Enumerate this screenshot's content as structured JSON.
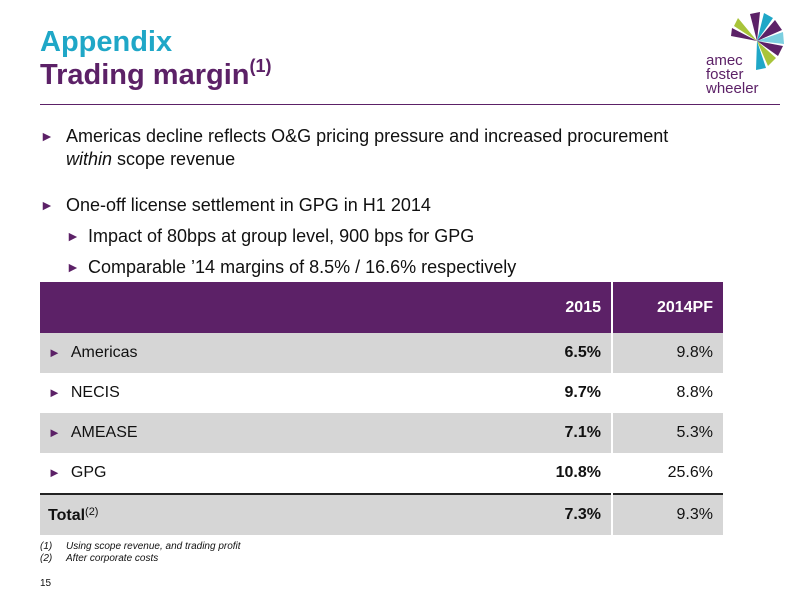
{
  "header": {
    "title_line1": "Appendix",
    "title_line2": "Trading margin",
    "title_sup": "(1)"
  },
  "logo": {
    "words": [
      "amec",
      "foster",
      "wheeler"
    ],
    "colors": [
      "#5c2167",
      "#1fa7c7",
      "#a8c43a",
      "#7ccfe0"
    ]
  },
  "bullets": {
    "b1_text": "Americas decline reflects O&G pricing pressure and increased procurement",
    "b1_cont_italic": "within",
    "b1_cont_rest": " scope revenue",
    "b2_text": "One-off license settlement in GPG in H1 2014",
    "b2_sub1": "Impact of 80bps at group level, 900 bps for GPG",
    "b2_sub2": "Comparable ’14 margins of 8.5% / 16.6% respectively"
  },
  "table": {
    "headers": [
      "2015",
      "2014PF"
    ],
    "rows": [
      {
        "label": "Americas",
        "v2015": "6.5%",
        "v2014": "9.8%"
      },
      {
        "label": "NECIS",
        "v2015": "9.7%",
        "v2014": "8.8%"
      },
      {
        "label": "AMEASE",
        "v2015": "7.1%",
        "v2014": "5.3%"
      },
      {
        "label": "GPG",
        "v2015": "10.8%",
        "v2014": "25.6%"
      }
    ],
    "total": {
      "label": "Total",
      "sup": "(2)",
      "v2015": "7.3%",
      "v2014": "9.3%"
    }
  },
  "footnotes": [
    {
      "num": "(1)",
      "text": "Using scope revenue, and trading profit"
    },
    {
      "num": "(2)",
      "text": "After corporate costs"
    }
  ],
  "page_number": "15",
  "colors": {
    "purple": "#5c2167",
    "cyan": "#1fa7c7",
    "row_shade": "#d6d6d6"
  },
  "icons": {
    "bullet": "right-triangle-arrow-icon"
  }
}
